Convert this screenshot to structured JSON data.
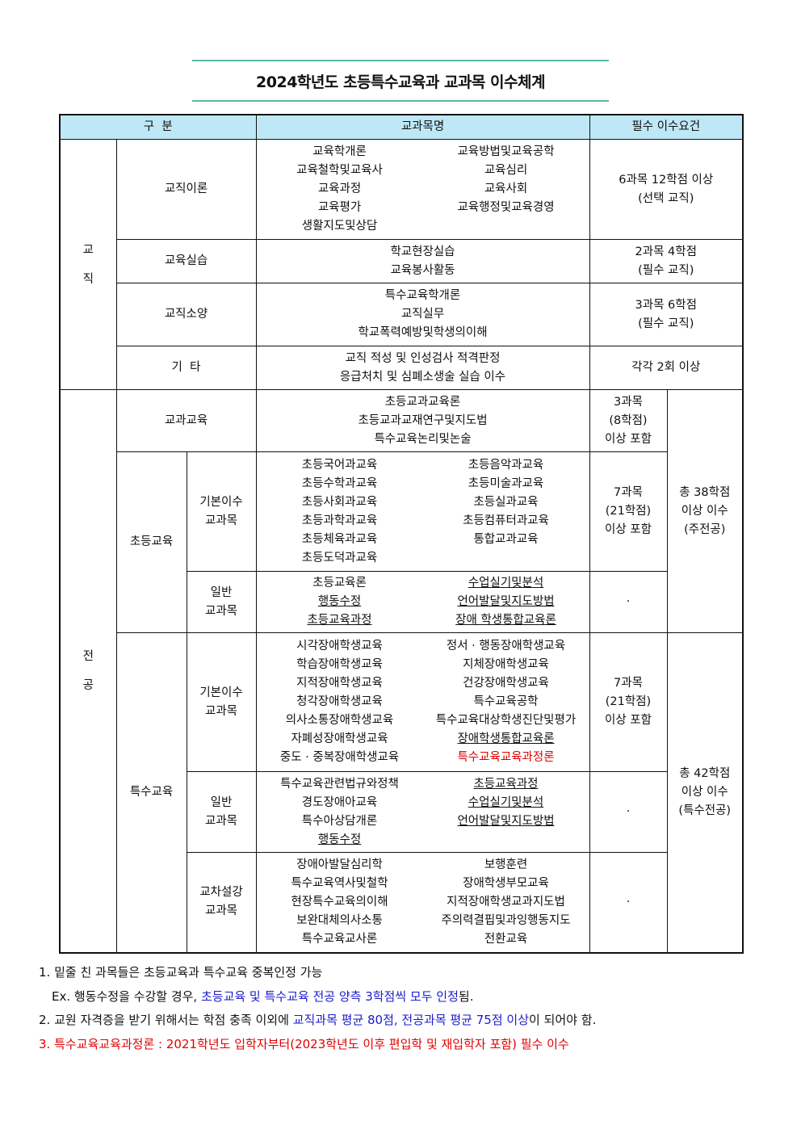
{
  "title": "2024학년도 초등특수교육과 교과목 이수체계",
  "header": {
    "category": "구  분",
    "courses": "교과목명",
    "requirement": "필수 이수요건"
  },
  "teaching": {
    "label": [
      "교",
      "직"
    ],
    "rows": [
      {
        "name": "교직이론",
        "left": [
          {
            "t": "교육학개론"
          },
          {
            "t": "교육철학및교육사"
          },
          {
            "t": "교육과정"
          },
          {
            "t": "교육평가"
          },
          {
            "t": "생활지도및상담"
          }
        ],
        "right": [
          {
            "t": "교육방법및교육공학"
          },
          {
            "t": "교육심리"
          },
          {
            "t": "교육사회"
          },
          {
            "t": "교육행정및교육경영"
          }
        ],
        "req": [
          "6과목 12학점 이상",
          "(선택 교직)"
        ]
      },
      {
        "name": "교육실습",
        "center": [
          {
            "t": "학교현장실습"
          },
          {
            "t": "교육봉사활동"
          }
        ],
        "req": [
          "2과목 4학점",
          "(필수 교직)"
        ]
      },
      {
        "name": "교직소양",
        "center": [
          {
            "t": "특수교육학개론"
          },
          {
            "t": "교직실무"
          },
          {
            "t": "학교폭력예방및학생의이해"
          }
        ],
        "req": [
          "3과목 6학점",
          "(필수 교직)"
        ]
      },
      {
        "name": "기  타",
        "center": [
          {
            "t": "교직 적성 및 인성검사 적격판정"
          },
          {
            "t": "응급처치 및 심폐소생술 실습 이수"
          }
        ],
        "req": [
          "각각 2회 이상"
        ]
      }
    ]
  },
  "major": {
    "label": [
      "전",
      "공"
    ],
    "subject_edu": {
      "name": "교과교육",
      "center": [
        {
          "t": "초등교과교육론"
        },
        {
          "t": "초등교과교재연구및지도법"
        },
        {
          "t": "특수교육논리및논술"
        }
      ],
      "req": [
        "3과목",
        "(8학점)",
        "이상 포함"
      ]
    },
    "elementary": {
      "name": "초등교육",
      "total": [
        "총 38학점",
        "이상 이수",
        "(주전공)"
      ],
      "basic": {
        "name": [
          "기본이수",
          "교과목"
        ],
        "left": [
          {
            "t": "초등국어과교육"
          },
          {
            "t": "초등수학과교육"
          },
          {
            "t": "초등사회과교육"
          },
          {
            "t": "초등과학과교육"
          },
          {
            "t": "초등체육과교육"
          },
          {
            "t": "초등도덕과교육"
          }
        ],
        "right": [
          {
            "t": "초등음악과교육"
          },
          {
            "t": "초등미술과교육"
          },
          {
            "t": "초등실과교육"
          },
          {
            "t": "초등컴퓨터과교육"
          },
          {
            "t": "통합교과교육"
          }
        ],
        "req": [
          "7과목",
          "(21학점)",
          "이상 포함"
        ]
      },
      "general": {
        "name": [
          "일반",
          "교과목"
        ],
        "left": [
          {
            "t": "초등교육론"
          },
          {
            "t": "행동수정",
            "u": true
          },
          {
            "t": "초등교육과정",
            "u": true
          }
        ],
        "right": [
          {
            "t": "수업실기및분석",
            "u": true
          },
          {
            "t": "언어발달및지도방법",
            "u": true
          },
          {
            "t": "장애 학생통합교육론",
            "u": true
          }
        ],
        "req": [
          "·"
        ]
      }
    },
    "special": {
      "name": "특수교육",
      "total": [
        "총 42학점",
        "이상 이수",
        "(특수전공)"
      ],
      "basic": {
        "name": [
          "기본이수",
          "교과목"
        ],
        "left": [
          {
            "t": "시각장애학생교육"
          },
          {
            "t": "학습장애학생교육"
          },
          {
            "t": "지적장애학생교육"
          },
          {
            "t": "청각장애학생교육"
          },
          {
            "t": "의사소통장애학생교육"
          },
          {
            "t": "자폐성장애학생교육"
          },
          {
            "t": "중도 · 중복장애학생교육"
          }
        ],
        "right": [
          {
            "t": "정서 · 행동장애학생교육"
          },
          {
            "t": "지체장애학생교육"
          },
          {
            "t": "건강장애학생교육"
          },
          {
            "t": "특수교육공학"
          },
          {
            "t": "특수교육대상학생진단및평가"
          },
          {
            "t": "장애학생통합교육론",
            "u": true
          },
          {
            "t": "특수교육교육과정론",
            "red": true
          }
        ],
        "req": [
          "7과목",
          "(21학점)",
          "이상 포함"
        ]
      },
      "general": {
        "name": [
          "일반",
          "교과목"
        ],
        "left": [
          {
            "t": "특수교육관련법규와정책"
          },
          {
            "t": "경도장애아교육"
          },
          {
            "t": "특수아상담개론"
          },
          {
            "t": "행동수정",
            "u": true
          }
        ],
        "right": [
          {
            "t": "초등교육과정",
            "u": true
          },
          {
            "t": "수업실기및분석",
            "u": true
          },
          {
            "t": "언어발달및지도방법",
            "u": true
          }
        ],
        "req": [
          "·"
        ]
      },
      "cross": {
        "name": [
          "교차설강",
          "교과목"
        ],
        "left": [
          {
            "t": "장애아발달심리학"
          },
          {
            "t": "특수교육역사및철학"
          },
          {
            "t": "현장특수교육의이해"
          },
          {
            "t": "보완대체의사소통"
          },
          {
            "t": "특수교육교사론"
          }
        ],
        "right": [
          {
            "t": "보행훈련"
          },
          {
            "t": "장애학생부모교육"
          },
          {
            "t": "지적장애학생교과지도법"
          },
          {
            "t": "주의력결핍및과잉행동지도"
          },
          {
            "t": "전환교육"
          }
        ],
        "req": [
          "·"
        ]
      }
    }
  },
  "notes": {
    "n1": "1. 밑줄 친 과목들은 초등교육과 특수교육 중복인정 가능",
    "ex_a": "Ex. 행동수정을 수강할 경우, ",
    "ex_b": "초등교육 및 특수교육 전공 양측 3학점씩 모두 인정",
    "ex_c": "됨.",
    "n2_a": "2. 교원 자격증을 받기 위해서는 학점 충족 이외에 ",
    "n2_b": "교직과목 평균 80점, 전공과목 평균 75점 이상",
    "n2_c": "이 되어야 함.",
    "n3": "3. 특수교육교육과정론 : 2021학년도 입학자부터(2023학년도 이후 편입학 및 재입학자 포함) 필수 이수"
  },
  "colors": {
    "header_bg": "#bfe8f7",
    "title_rule": "#5bb8a4",
    "emphasis_blue": "#1a1acc",
    "emphasis_red": "#e00000"
  }
}
